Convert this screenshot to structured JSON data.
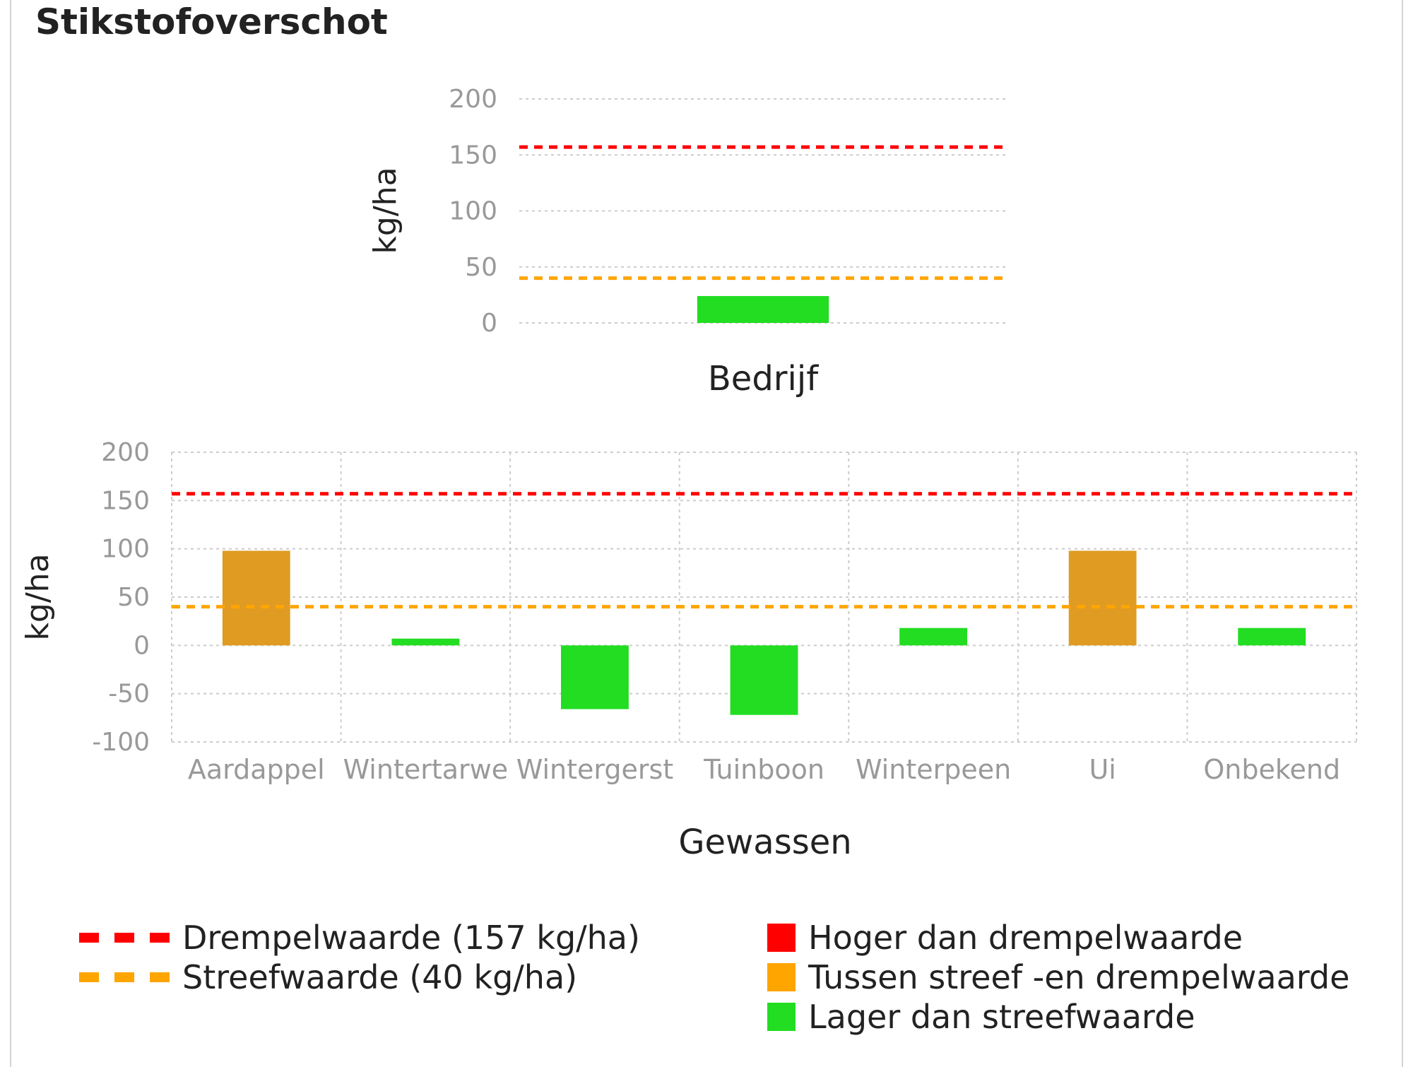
{
  "title": "Stikstofoverschot",
  "colors": {
    "threshold": "#ff0000",
    "target": "#ffa500",
    "above_threshold": "#ff0000",
    "between": "#e09b22",
    "below_target": "#22dd22",
    "grid": "#cccccc",
    "tick_text": "#999999"
  },
  "chart_data": [
    {
      "type": "bar",
      "categories": [
        "Bedrijf"
      ],
      "values": [
        24
      ],
      "xlabel": "Bedrijf",
      "ylabel": "kg/ha",
      "ylim": [
        0,
        200
      ],
      "yticks": [
        0,
        50,
        100,
        150,
        200
      ],
      "reference_lines": [
        {
          "value": 157,
          "color": "#ff0000"
        },
        {
          "value": 40,
          "color": "#ffa500"
        }
      ],
      "bar_colors": [
        "#22dd22"
      ],
      "grid": "horizontal"
    },
    {
      "type": "bar",
      "categories": [
        "Aardappel",
        "Wintertarwe",
        "Wintergerst",
        "Tuinboon",
        "Winterpeen",
        "Ui",
        "Onbekend"
      ],
      "values": [
        98,
        7,
        -66,
        -72,
        18,
        98,
        18
      ],
      "xlabel": "Gewassen",
      "ylabel": "kg/ha",
      "ylim": [
        -100,
        200
      ],
      "yticks": [
        -100,
        -50,
        0,
        50,
        100,
        150,
        200
      ],
      "reference_lines": [
        {
          "value": 157,
          "color": "#ff0000"
        },
        {
          "value": 40,
          "color": "#ffa500"
        }
      ],
      "bar_colors": [
        "#e09b22",
        "#22dd22",
        "#22dd22",
        "#22dd22",
        "#22dd22",
        "#e09b22",
        "#22dd22"
      ],
      "grid": "both"
    }
  ],
  "legend": {
    "lines": [
      {
        "label": "Drempelwaarde (157 kg/ha)",
        "color": "#ff0000"
      },
      {
        "label": "Streefwaarde (40 kg/ha)",
        "color": "#ffa500"
      }
    ],
    "categories": [
      {
        "label": "Hoger dan drempelwaarde",
        "color": "#ff0000"
      },
      {
        "label": "Tussen streef -en drempelwaarde",
        "color": "#ffa500"
      },
      {
        "label": "Lager dan streefwaarde",
        "color": "#22dd22"
      }
    ]
  }
}
